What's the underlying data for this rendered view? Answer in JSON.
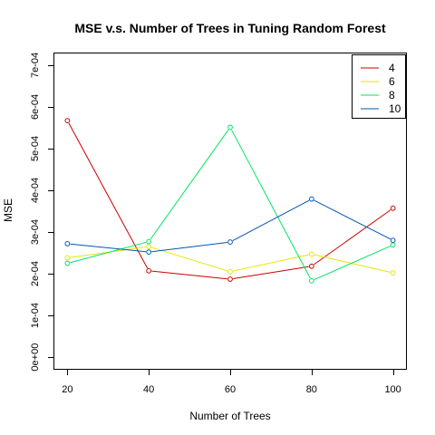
{
  "chart_data": {
    "type": "line",
    "title": "MSE v.s. Number of Trees in Tuning Random Forest",
    "xlabel": "Number of Trees",
    "ylabel": "MSE",
    "x": [
      20,
      40,
      60,
      80,
      100
    ],
    "x_tick_labels": [
      "20",
      "40",
      "60",
      "80",
      "100"
    ],
    "y_ticks": [
      0,
      0.0001,
      0.0002,
      0.0003,
      0.0004,
      0.0005,
      0.0006,
      0.0007
    ],
    "y_tick_labels": [
      "0e+00",
      "1e-04",
      "2e-04",
      "3e-04",
      "4e-04",
      "5e-04",
      "6e-04",
      "7e-04"
    ],
    "xlim": [
      16.8,
      103.2
    ],
    "ylim": [
      -2.8e-05,
      0.000728
    ],
    "grid": false,
    "legend_position": "top-right",
    "series": [
      {
        "name": "4",
        "color": "#CC0000",
        "values": [
          0.000567,
          0.000207,
          0.000187,
          0.000218,
          0.000357
        ]
      },
      {
        "name": "6",
        "color": "#E6E600",
        "values": [
          0.000238,
          0.000265,
          0.000205,
          0.000247,
          0.000202
        ]
      },
      {
        "name": "8",
        "color": "#00E65F",
        "values": [
          0.000225,
          0.000277,
          0.000551,
          0.000183,
          0.000269
        ]
      },
      {
        "name": "10",
        "color": "#0057B3",
        "values": [
          0.000272,
          0.000252,
          0.000276,
          0.000379,
          0.00028
        ]
      }
    ]
  }
}
